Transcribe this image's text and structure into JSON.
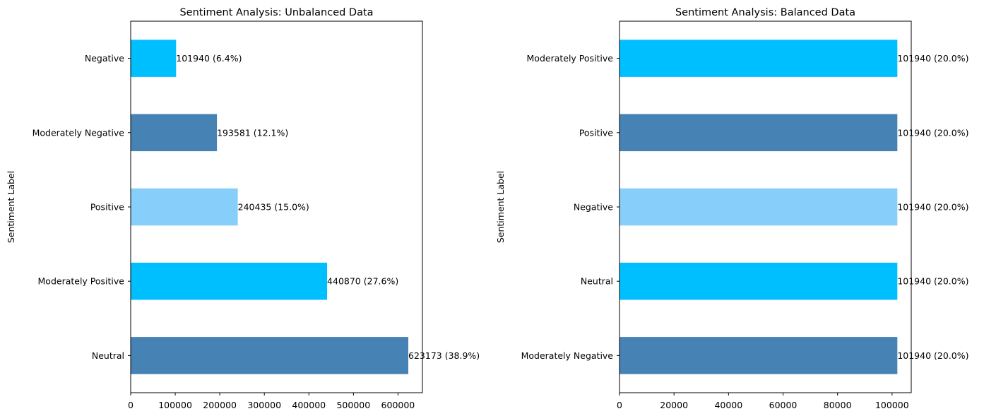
{
  "chart_data": [
    {
      "type": "bar",
      "orientation": "horizontal",
      "title": "Sentiment Analysis: Unbalanced Data",
      "xlabel": "",
      "ylabel": "Sentiment Label",
      "categories": [
        "Neutral",
        "Moderately Positive",
        "Positive",
        "Moderately Negative",
        "Negative"
      ],
      "values": [
        623173,
        440870,
        240435,
        193581,
        101940
      ],
      "data_labels": [
        "623173 (38.9%)",
        "440870 (27.6%)",
        "240435 (15.0%)",
        "193581 (12.1%)",
        "101940 (6.4%)"
      ],
      "bar_colors": [
        "#4682b4",
        "#00bfff",
        "#87cefa",
        "#4682b4",
        "#00bfff"
      ],
      "xticks": [
        0,
        100000,
        200000,
        300000,
        400000,
        500000,
        600000
      ],
      "xtick_labels": [
        "0",
        "100000",
        "200000",
        "300000",
        "400000",
        "500000",
        "600000"
      ],
      "xlim": [
        0,
        654832
      ],
      "grid": false,
      "legend": "none"
    },
    {
      "type": "bar",
      "orientation": "horizontal",
      "title": "Sentiment Analysis: Balanced Data",
      "xlabel": "",
      "ylabel": "Sentiment Label",
      "categories": [
        "Moderately Negative",
        "Neutral",
        "Negative",
        "Positive",
        "Moderately Positive"
      ],
      "values": [
        101940,
        101940,
        101940,
        101940,
        101940
      ],
      "data_labels": [
        "101940 (20.0%)",
        "101940 (20.0%)",
        "101940 (20.0%)",
        "101940 (20.0%)",
        "101940 (20.0%)"
      ],
      "bar_colors": [
        "#4682b4",
        "#00bfff",
        "#87cefa",
        "#4682b4",
        "#00bfff"
      ],
      "xticks": [
        0,
        20000,
        40000,
        60000,
        80000,
        100000
      ],
      "xtick_labels": [
        "0",
        "20000",
        "40000",
        "60000",
        "80000",
        "100000"
      ],
      "xlim": [
        0,
        107037
      ],
      "grid": false,
      "legend": "none"
    }
  ]
}
